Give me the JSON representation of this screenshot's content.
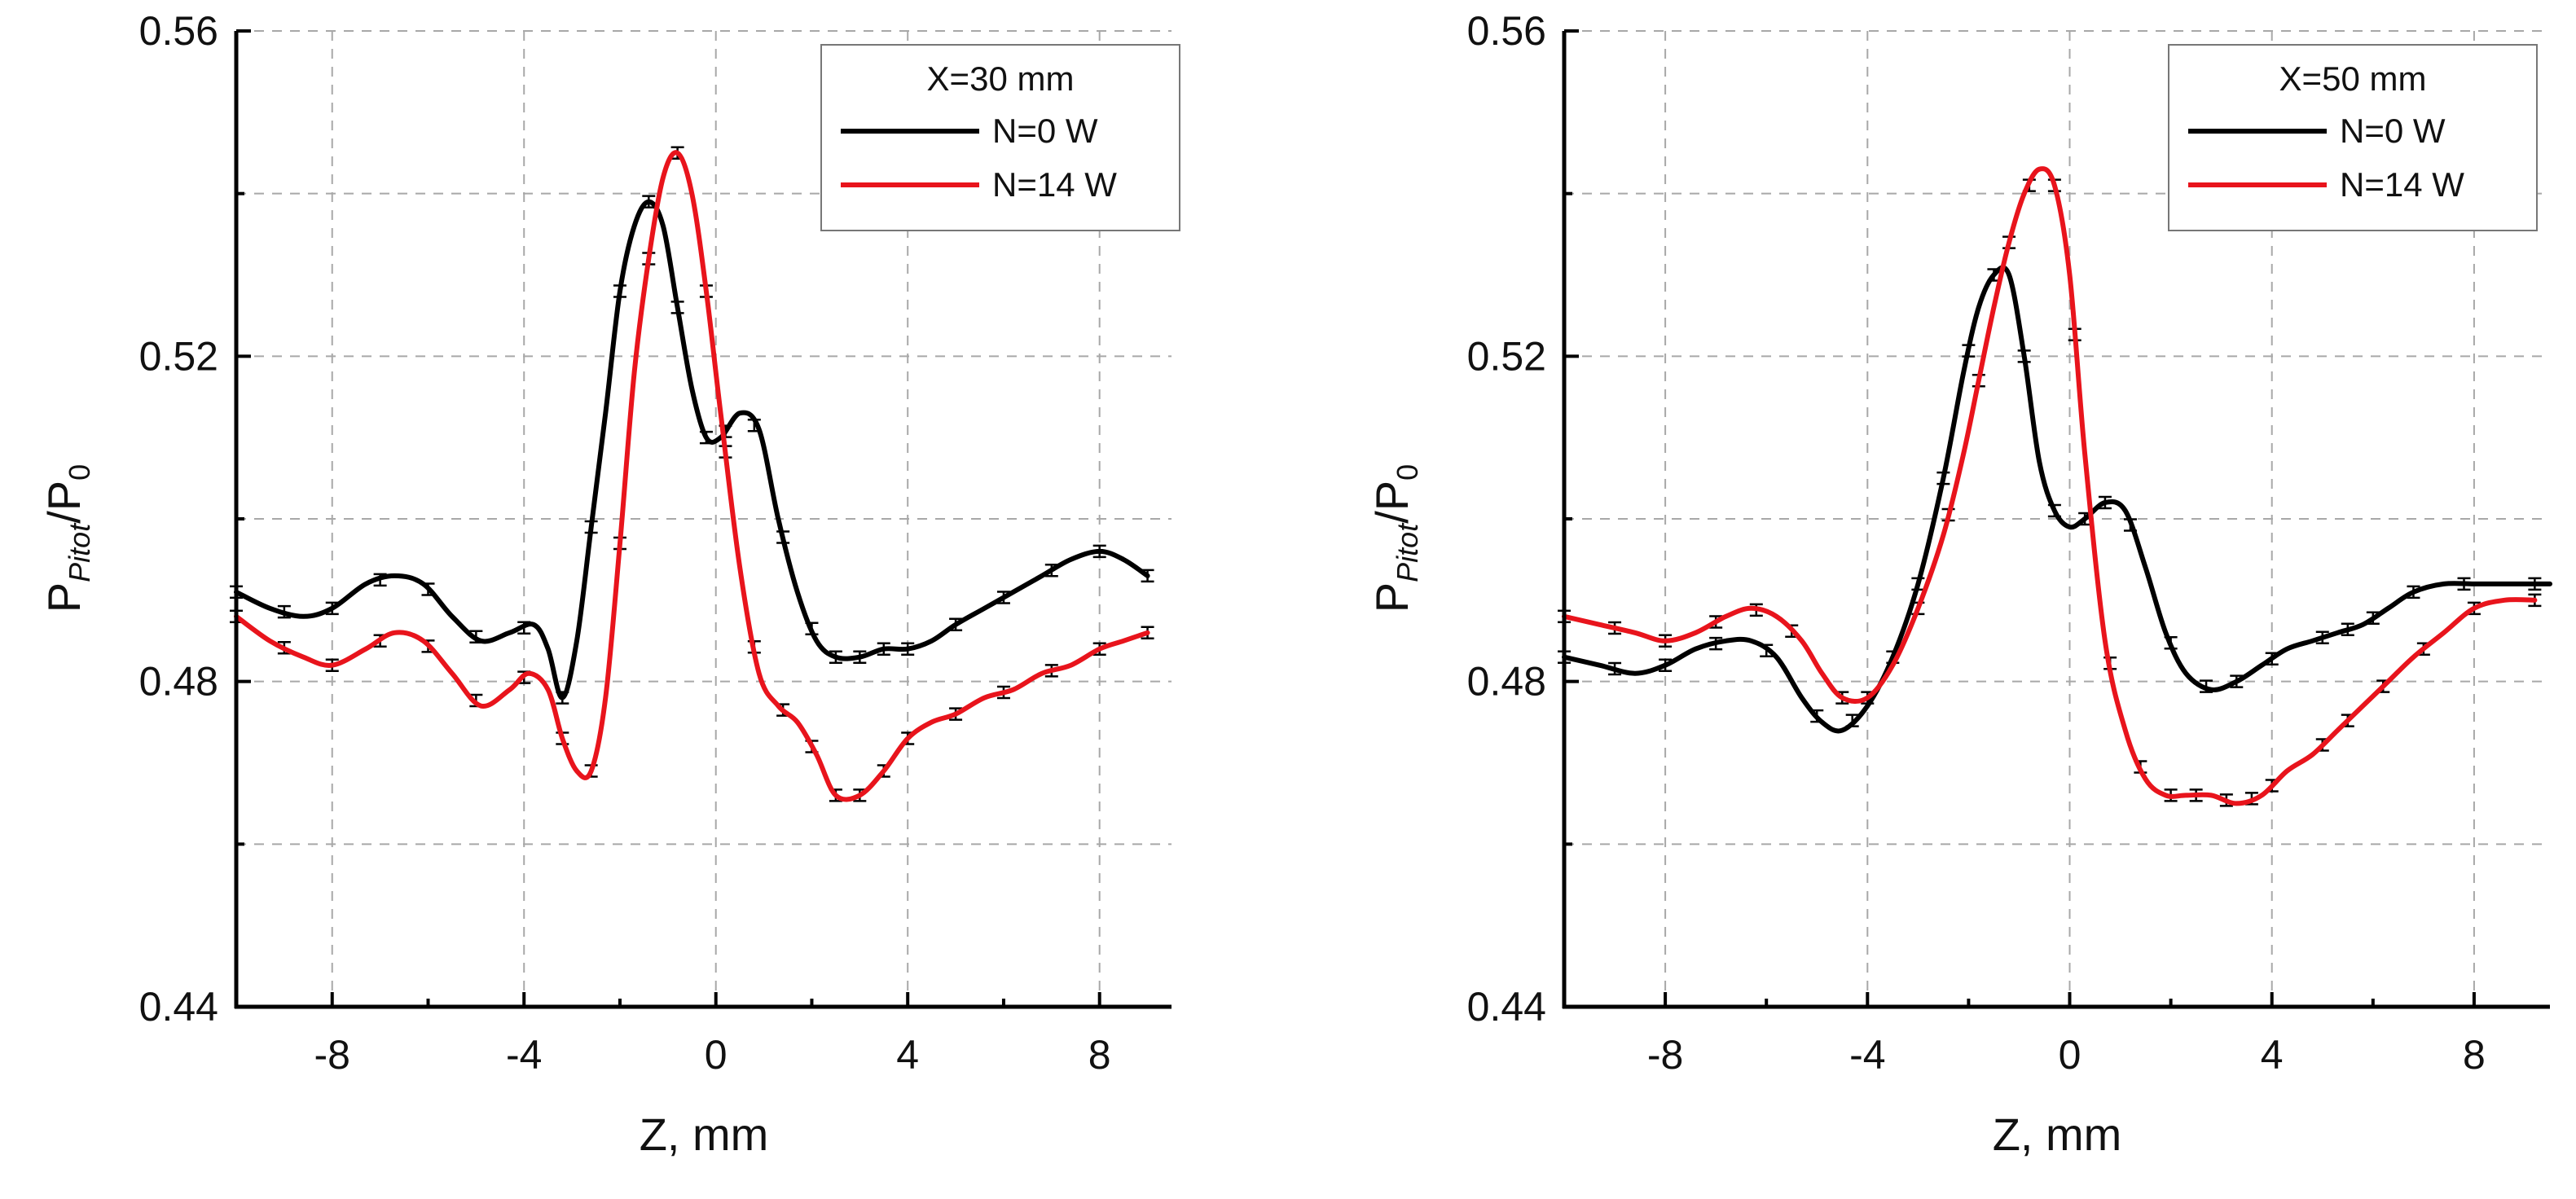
{
  "figure": {
    "title": ""
  },
  "chart_data": [
    {
      "type": "line",
      "title": "",
      "xlabel": "Z, mm",
      "ylabel_main": "P",
      "ylabel_sub": "Pitot",
      "ylabel_slash": "/P",
      "ylabel_sub2": "0",
      "xlim": [
        -10,
        9.5
      ],
      "ylim": [
        0.44,
        0.56
      ],
      "xticks": [
        -8,
        -4,
        0,
        4,
        8
      ],
      "xtick_labels": [
        "-8",
        "-4",
        "0",
        "4",
        "8"
      ],
      "yticks": [
        0.44,
        0.48,
        0.52,
        0.56
      ],
      "ytick_labels": [
        "0.44",
        "0.48",
        "0.52",
        "0.56"
      ],
      "ygrid": [
        0.46,
        0.48,
        0.5,
        0.52,
        0.54,
        0.56
      ],
      "grid": true,
      "legend": {
        "title": "X=30 mm",
        "placement": "top-right"
      },
      "series": [
        {
          "name": "N=0 W",
          "color": "#000000",
          "x": [
            -10,
            -9.3,
            -8.6,
            -8,
            -7.3,
            -6.7,
            -6.1,
            -5.5,
            -4.9,
            -4.3,
            -3.8,
            -3.5,
            -3.2,
            -2.9,
            -2.6,
            -2.3,
            -2.0,
            -1.7,
            -1.4,
            -1.1,
            -0.8,
            -0.5,
            -0.2,
            0.1,
            0.5,
            0.9,
            1.3,
            1.7,
            2.1,
            2.5,
            3.0,
            3.5,
            4.0,
            4.5,
            5.0,
            5.6,
            6.2,
            6.8,
            7.4,
            8.0,
            8.5,
            9.0
          ],
          "y": [
            0.491,
            0.489,
            0.488,
            0.489,
            0.492,
            0.493,
            0.492,
            0.488,
            0.485,
            0.486,
            0.487,
            0.484,
            0.478,
            0.485,
            0.499,
            0.513,
            0.528,
            0.536,
            0.539,
            0.536,
            0.526,
            0.516,
            0.51,
            0.51,
            0.513,
            0.511,
            0.5,
            0.491,
            0.485,
            0.483,
            0.483,
            0.484,
            0.484,
            0.485,
            0.487,
            0.489,
            0.491,
            0.493,
            0.495,
            0.496,
            0.495,
            0.493
          ],
          "err_x": [
            -10,
            -9,
            -8,
            -7,
            -6,
            -5,
            -4,
            -3.2,
            -2.6,
            -2,
            -1.4,
            -0.8,
            -0.2,
            0.2,
            0.8,
            1.4,
            2.0,
            2.5,
            3.0,
            3.5,
            4.0,
            5.0,
            6.0,
            7.0,
            8.0,
            9.0
          ]
        },
        {
          "name": "N=14 W",
          "color": "#e8141c",
          "x": [
            -10,
            -9.3,
            -8.6,
            -8,
            -7.3,
            -6.7,
            -6.1,
            -5.5,
            -4.9,
            -4.3,
            -3.9,
            -3.5,
            -3.2,
            -2.9,
            -2.6,
            -2.3,
            -2.0,
            -1.7,
            -1.4,
            -1.1,
            -0.8,
            -0.5,
            -0.2,
            0.1,
            0.5,
            0.9,
            1.3,
            1.7,
            2.1,
            2.5,
            3.0,
            3.5,
            4.0,
            4.5,
            5.0,
            5.6,
            6.2,
            6.8,
            7.4,
            8.0,
            8.5,
            9.0
          ],
          "y": [
            0.488,
            0.485,
            0.483,
            0.482,
            0.484,
            0.486,
            0.485,
            0.481,
            0.477,
            0.479,
            0.481,
            0.479,
            0.473,
            0.469,
            0.469,
            0.478,
            0.497,
            0.518,
            0.532,
            0.542,
            0.545,
            0.54,
            0.528,
            0.513,
            0.494,
            0.481,
            0.477,
            0.475,
            0.471,
            0.466,
            0.466,
            0.469,
            0.473,
            0.475,
            0.476,
            0.478,
            0.479,
            0.481,
            0.482,
            0.484,
            0.485,
            0.486
          ],
          "err_x": [
            -10,
            -9,
            -8,
            -7,
            -6,
            -5,
            -4,
            -3.2,
            -2.6,
            -2,
            -1.4,
            -0.8,
            -0.2,
            0.2,
            0.8,
            1.4,
            2.0,
            2.5,
            3.0,
            3.5,
            4.0,
            5.0,
            6.0,
            7.0,
            8.0,
            9.0
          ]
        }
      ]
    },
    {
      "type": "line",
      "title": "",
      "xlabel": "Z, mm",
      "ylabel_main": "P",
      "ylabel_sub": "Pitot",
      "ylabel_slash": "/P",
      "ylabel_sub2": "0",
      "xlim": [
        -10,
        9.5
      ],
      "ylim": [
        0.44,
        0.56
      ],
      "xticks": [
        -8,
        -4,
        0,
        4,
        8
      ],
      "xtick_labels": [
        "-8",
        "-4",
        "0",
        "4",
        "8"
      ],
      "yticks": [
        0.44,
        0.48,
        0.52,
        0.56
      ],
      "ytick_labels": [
        "0.44",
        "0.48",
        "0.52",
        "0.56"
      ],
      "ygrid": [
        0.46,
        0.48,
        0.5,
        0.52,
        0.54,
        0.56
      ],
      "grid": true,
      "legend": {
        "title": "X=50 mm",
        "placement": "top-right"
      },
      "series": [
        {
          "name": "N=0 W",
          "color": "#000000",
          "x": [
            -10,
            -9.3,
            -8.6,
            -8,
            -7.4,
            -6.8,
            -6.3,
            -5.8,
            -5.3,
            -4.9,
            -4.5,
            -4.0,
            -3.5,
            -3.0,
            -2.5,
            -2.1,
            -1.8,
            -1.5,
            -1.2,
            -0.9,
            -0.6,
            -0.3,
            0.0,
            0.3,
            0.7,
            1.1,
            1.5,
            1.9,
            2.3,
            2.8,
            3.3,
            3.8,
            4.3,
            4.8,
            5.3,
            5.8,
            6.3,
            6.8,
            7.4,
            8.0,
            8.6,
            9.2,
            9.5
          ],
          "y": [
            0.483,
            0.482,
            0.481,
            0.482,
            0.484,
            0.485,
            0.485,
            0.483,
            0.478,
            0.475,
            0.474,
            0.477,
            0.483,
            0.492,
            0.505,
            0.518,
            0.526,
            0.53,
            0.53,
            0.52,
            0.507,
            0.501,
            0.499,
            0.5,
            0.502,
            0.501,
            0.494,
            0.486,
            0.481,
            0.479,
            0.48,
            0.482,
            0.484,
            0.485,
            0.486,
            0.487,
            0.489,
            0.491,
            0.492,
            0.492,
            0.492,
            0.492,
            0.492
          ],
          "err_x": [
            -10,
            -9,
            -8,
            -7,
            -6,
            -5,
            -4.3,
            -3.5,
            -3,
            -2.5,
            -2,
            -1.5,
            -0.9,
            -0.3,
            0.3,
            0.7,
            1.2,
            2.0,
            2.7,
            3.3,
            4.0,
            5.0,
            5.5,
            6.0,
            6.8,
            7.8,
            9.2
          ]
        },
        {
          "name": "N=14 W",
          "color": "#e8141c",
          "x": [
            -10,
            -9.3,
            -8.6,
            -8,
            -7.4,
            -6.8,
            -6.3,
            -5.8,
            -5.3,
            -4.9,
            -4.5,
            -4.0,
            -3.5,
            -3.0,
            -2.5,
            -2.1,
            -1.8,
            -1.5,
            -1.2,
            -0.9,
            -0.6,
            -0.3,
            0.0,
            0.3,
            0.7,
            1.1,
            1.5,
            1.9,
            2.3,
            2.8,
            3.3,
            3.8,
            4.3,
            4.8,
            5.3,
            5.8,
            6.3,
            6.8,
            7.4,
            8.0,
            8.6,
            9.2
          ],
          "y": [
            0.488,
            0.487,
            0.486,
            0.485,
            0.486,
            0.488,
            0.489,
            0.488,
            0.485,
            0.481,
            0.478,
            0.478,
            0.482,
            0.489,
            0.498,
            0.508,
            0.517,
            0.526,
            0.534,
            0.54,
            0.543,
            0.541,
            0.53,
            0.508,
            0.485,
            0.474,
            0.468,
            0.466,
            0.466,
            0.466,
            0.465,
            0.466,
            0.469,
            0.471,
            0.474,
            0.477,
            0.48,
            0.483,
            0.486,
            0.489,
            0.49,
            0.49
          ],
          "err_x": [
            -10,
            -9,
            -8,
            -7,
            -6.2,
            -5.5,
            -4.5,
            -4.0,
            -3.0,
            -2.4,
            -1.8,
            -1.2,
            -0.8,
            -0.3,
            0.1,
            0.8,
            1.4,
            2.0,
            2.5,
            3.1,
            3.6,
            4.0,
            5.0,
            5.5,
            6.2,
            7.0,
            8.0,
            9.2
          ]
        }
      ]
    }
  ]
}
